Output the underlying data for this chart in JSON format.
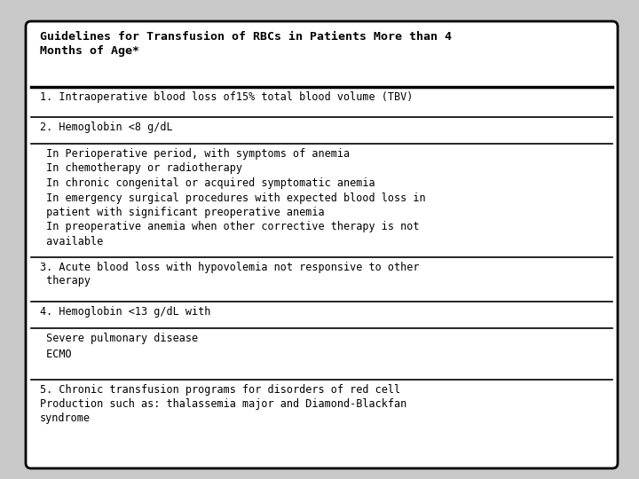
{
  "title": "Guidelines for Transfusion of RBCs in Patients More than 4\nMonths of Age*",
  "rows": [
    {
      "text": "1. Intraoperative blood loss of15% total blood volume (TBV)",
      "sub_items": []
    },
    {
      "text": "2. Hemoglobin <8 g/dL",
      "sub_items": []
    },
    {
      "text": "",
      "sub_items": [
        " In Perioperative period, with symptoms of anemia",
        " In chemotherapy or radiotherapy",
        " In chronic congenital or acquired symptomatic anemia",
        " In emergency surgical procedures with expected blood loss in\n patient with significant preoperative anemia",
        " In preoperative anemia when other corrective therapy is not\n available"
      ]
    },
    {
      "text": "3. Acute blood loss with hypovolemia not responsive to other\n therapy",
      "sub_items": []
    },
    {
      "text": "4. Hemoglobin <13 g/dL with",
      "sub_items": []
    },
    {
      "text": "",
      "sub_items": [
        " Severe pulmonary disease",
        " ECMO"
      ]
    },
    {
      "text": "5. Chronic transfusion programs for disorders of red cell\nProduction such as: thalassemia major and Diamond-Blackfan\nsyndrome",
      "sub_items": []
    }
  ],
  "bg_color": "#ffffff",
  "border_color": "#000000",
  "outer_bg": "#c8c8c8",
  "title_fontsize": 9.5,
  "row_fontsize": 8.5
}
